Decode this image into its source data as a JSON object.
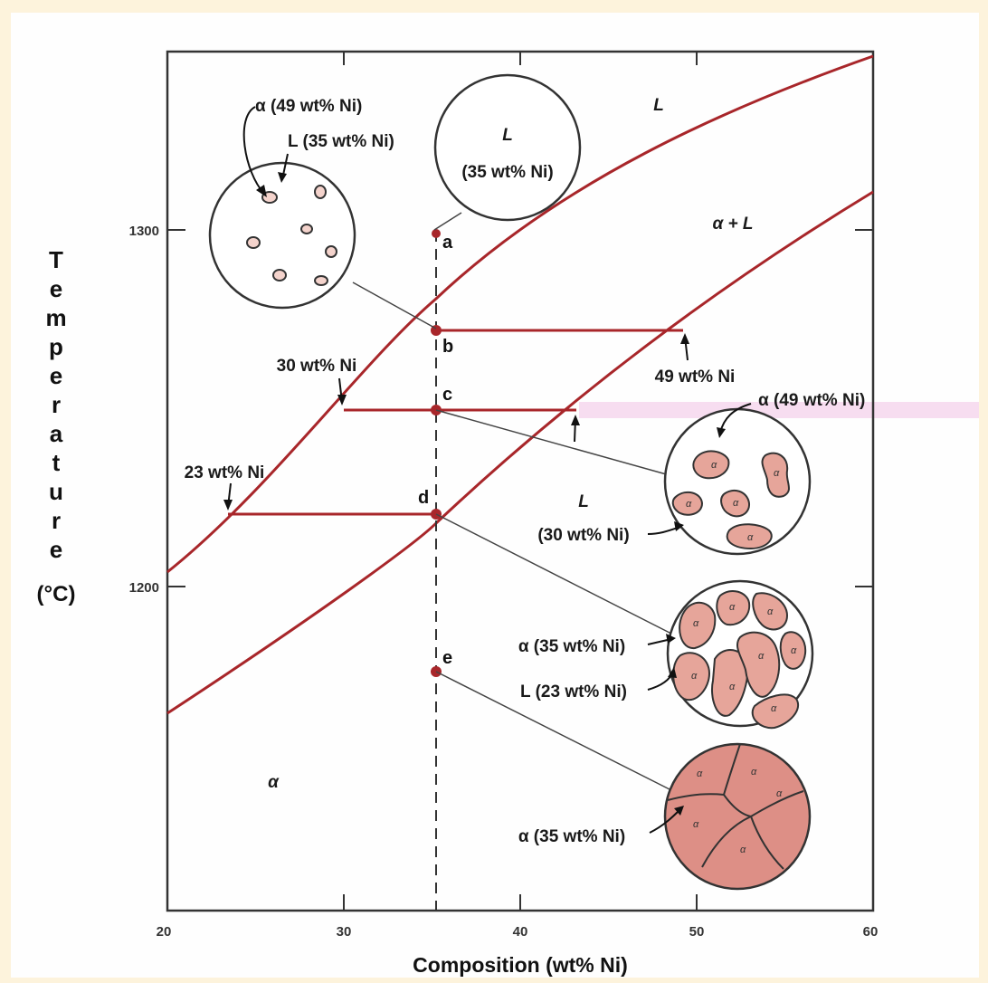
{
  "diagram": {
    "xlabel": "Composition (wt% Ni)",
    "ylabel_letters": [
      "T",
      "e",
      "m",
      "p",
      "e",
      "r",
      "a",
      "t",
      "u",
      "r",
      "e"
    ],
    "ylabel_unit": "(°C)",
    "x_ticks": [
      "20",
      "30",
      "40",
      "50",
      "60"
    ],
    "y_ticks": [
      "1300",
      "1200"
    ],
    "points": [
      "a",
      "b",
      "c",
      "d",
      "e"
    ],
    "phase_labels": {
      "liquid": "L",
      "two_phase": "α + L",
      "solid": "α"
    },
    "tie_line_labels": {
      "b_solid": "49 wt% Ni",
      "c_liquid": "30 wt% Ni",
      "d_liquid": "23 wt% Ni"
    },
    "micrographs": {
      "a": {
        "phase": "L",
        "composition": "(35 wt% Ni)"
      },
      "b": {
        "alpha": "α (49 wt% Ni)",
        "liquid": "L (35 wt% Ni)"
      },
      "c": {
        "alpha": "α (49 wt% Ni)",
        "liquid_phase": "L",
        "liquid_comp": "(30 wt% Ni)"
      },
      "d": {
        "alpha": "α (35 wt% Ni)",
        "liquid": "L (23 wt% Ni)"
      },
      "e": {
        "alpha": "α (35 wt% Ni)"
      }
    },
    "grain_label": "α",
    "colors": {
      "phase_line": "#a8262a",
      "grain_fill": "#e6a59a",
      "solid_fill": "#dd8f86",
      "axis": "#333333",
      "highlight": "#f7ddf0"
    }
  }
}
